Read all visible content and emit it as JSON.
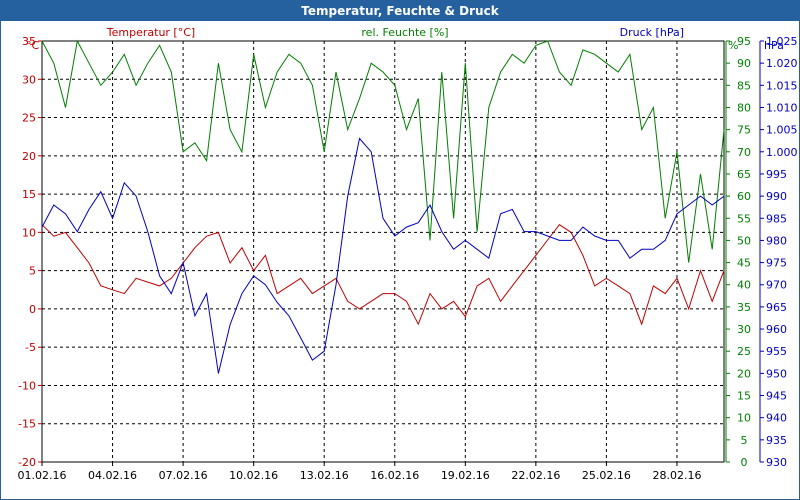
{
  "window": {
    "title": "Temperatur, Feuchte & Druck"
  },
  "chart_data": {
    "type": "line",
    "title": "Temperatur, Feuchte & Druck",
    "grid": true,
    "x_ticks": [
      "01.02.16",
      "04.02.16",
      "07.02.16",
      "10.02.16",
      "13.02.16",
      "16.02.16",
      "19.02.16",
      "22.02.16",
      "25.02.16",
      "28.02.16"
    ],
    "x_range": [
      0,
      29
    ],
    "axes": {
      "temperature": {
        "unit": "°C",
        "min": -20,
        "max": 35,
        "ticks": [
          35,
          30,
          25,
          20,
          15,
          10,
          5,
          0,
          -5,
          -10,
          -15,
          -20
        ],
        "color": "#c00000"
      },
      "humidity": {
        "unit": "%",
        "min": 0,
        "max": 95,
        "ticks": [
          95,
          90,
          85,
          80,
          75,
          70,
          65,
          60,
          55,
          50,
          45,
          40,
          35,
          30,
          25,
          20,
          15,
          10,
          5,
          0
        ],
        "color": "#007f00"
      },
      "pressure": {
        "unit": "hPa",
        "min": 930,
        "max": 1025,
        "ticks": [
          "1.025",
          "1.020",
          "1.015",
          "1.010",
          "1.005",
          "1.000",
          995,
          990,
          985,
          980,
          975,
          970,
          965,
          960,
          955,
          950,
          945,
          940,
          935,
          930
        ],
        "color": "#0000c0"
      }
    },
    "series": [
      {
        "name": "Temperatur [°C]",
        "axis": "temperature",
        "color": "#c00000",
        "x": [
          0,
          0.5,
          1,
          1.5,
          2,
          2.5,
          3,
          3.5,
          4,
          4.5,
          5,
          5.5,
          6,
          6.5,
          7,
          7.5,
          8,
          8.5,
          9,
          9.5,
          10,
          10.5,
          11,
          11.5,
          12,
          12.5,
          13,
          13.5,
          14,
          14.5,
          15,
          15.5,
          16,
          16.5,
          17,
          17.5,
          18,
          18.5,
          19,
          19.5,
          20,
          20.5,
          21,
          21.5,
          22,
          22.5,
          23,
          23.5,
          24,
          24.5,
          25,
          25.5,
          26,
          26.5,
          27,
          27.5,
          28,
          28.5,
          29
        ],
        "values": [
          11,
          9.5,
          10,
          8,
          6,
          3,
          2.5,
          2,
          4,
          3.5,
          3,
          4,
          6,
          8,
          9.5,
          10,
          6,
          8,
          5,
          7,
          2,
          3,
          4,
          2,
          3,
          4,
          1,
          0,
          1,
          2,
          2,
          1,
          -2,
          2,
          0,
          1,
          -1,
          3,
          4,
          1,
          3,
          5,
          7,
          9,
          11,
          10,
          7,
          3,
          4,
          3,
          2,
          -2,
          3,
          2,
          4,
          0,
          5,
          1,
          5
        ]
      },
      {
        "name": "rel. Feuchte [%]",
        "axis": "humidity",
        "color": "#007f00",
        "x": [
          0,
          0.5,
          1,
          1.5,
          2,
          2.5,
          3,
          3.5,
          4,
          4.5,
          5,
          5.5,
          6,
          6.5,
          7,
          7.5,
          8,
          8.5,
          9,
          9.5,
          10,
          10.5,
          11,
          11.5,
          12,
          12.5,
          13,
          13.5,
          14,
          14.5,
          15,
          15.5,
          16,
          16.5,
          17,
          17.5,
          18,
          18.5,
          19,
          19.5,
          20,
          20.5,
          21,
          21.5,
          22,
          22.5,
          23,
          23.5,
          24,
          24.5,
          25,
          25.5,
          26,
          26.5,
          27,
          27.5,
          28,
          28.5,
          29
        ],
        "values": [
          95,
          90,
          80,
          95,
          90,
          85,
          88,
          92,
          85,
          90,
          94,
          88,
          70,
          72,
          68,
          90,
          75,
          70,
          92,
          80,
          88,
          92,
          90,
          85,
          70,
          88,
          75,
          82,
          90,
          88,
          85,
          75,
          82,
          50,
          88,
          55,
          90,
          52,
          80,
          88,
          92,
          90,
          94,
          95,
          88,
          85,
          93,
          92,
          90,
          88,
          92,
          75,
          80,
          55,
          70,
          45,
          65,
          48,
          75
        ]
      },
      {
        "name": "Druck [hPa]",
        "axis": "pressure",
        "color": "#0000c0",
        "x": [
          0,
          0.5,
          1,
          1.5,
          2,
          2.5,
          3,
          3.5,
          4,
          4.5,
          5,
          5.5,
          6,
          6.5,
          7,
          7.5,
          8,
          8.5,
          9,
          9.5,
          10,
          10.5,
          11,
          11.5,
          12,
          12.5,
          13,
          13.5,
          14,
          14.5,
          15,
          15.5,
          16,
          16.5,
          17,
          17.5,
          18,
          18.5,
          19,
          19.5,
          20,
          20.5,
          21,
          21.5,
          22,
          22.5,
          23,
          23.5,
          24,
          24.5,
          25,
          25.5,
          26,
          26.5,
          27,
          27.5,
          28,
          28.5,
          29
        ],
        "values": [
          983,
          988,
          986,
          982,
          987,
          991,
          985,
          993,
          990,
          982,
          972,
          968,
          975,
          963,
          968,
          950,
          961,
          968,
          972,
          970,
          966,
          963,
          958,
          953,
          955,
          970,
          990,
          1003,
          1000,
          985,
          981,
          983,
          984,
          988,
          982,
          978,
          980,
          978,
          976,
          986,
          987,
          982,
          982,
          981,
          980,
          980,
          983,
          981,
          980,
          980,
          976,
          978,
          978,
          980,
          986,
          988,
          990,
          988,
          990
        ]
      }
    ],
    "legend": [
      "Temperatur [°C]",
      "rel. Feuchte [%]",
      "Druck [hPa]"
    ]
  }
}
